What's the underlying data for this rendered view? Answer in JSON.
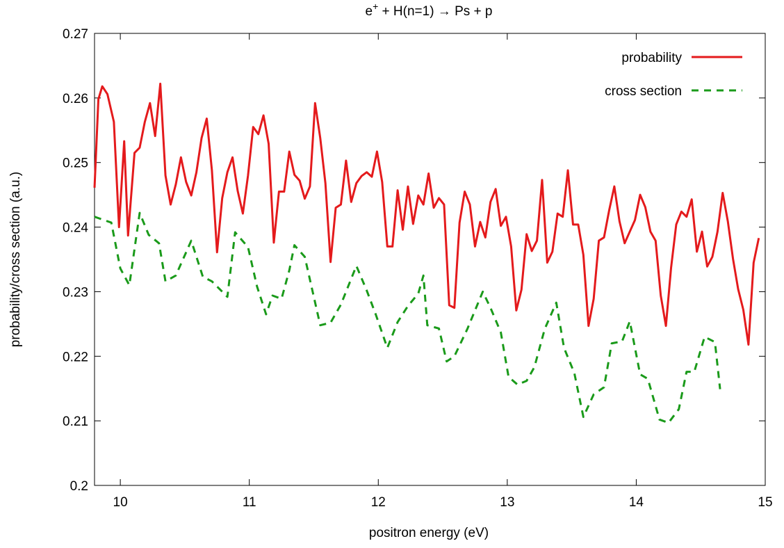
{
  "chart_data": {
    "type": "line",
    "title": [
      "e",
      "+",
      " + H(n=1) → Ps + p"
    ],
    "xlabel": "positron energy (eV)",
    "ylabel": "probability/cross section (a.u.)",
    "xlim": [
      9.8,
      15
    ],
    "xticks": [
      10,
      11,
      12,
      13,
      14,
      15
    ],
    "ylim": [
      0.2,
      0.27
    ],
    "yticks": [
      0.2,
      0.21,
      0.22,
      0.23,
      0.24,
      0.25,
      0.26,
      0.27
    ],
    "legend": "top-right",
    "series": [
      {
        "name": "probability",
        "color": "#e41a1c",
        "dash": false,
        "x": [
          9.8,
          9.83,
          9.86,
          9.9,
          9.95,
          9.99,
          10.03,
          10.06,
          10.11,
          10.15,
          10.19,
          10.23,
          10.27,
          10.31,
          10.35,
          10.39,
          10.43,
          10.47,
          10.51,
          10.55,
          10.59,
          10.63,
          10.67,
          10.71,
          10.75,
          10.79,
          10.83,
          10.87,
          10.91,
          10.95,
          10.99,
          11.03,
          11.07,
          11.11,
          11.15,
          11.19,
          11.23,
          11.27,
          11.31,
          11.35,
          11.39,
          11.43,
          11.47,
          11.51,
          11.55,
          11.59,
          11.63,
          11.67,
          11.71,
          11.75,
          11.79,
          11.83,
          11.87,
          11.91,
          11.95,
          11.99,
          12.03,
          12.07,
          12.11,
          12.15,
          12.19,
          12.23,
          12.27,
          12.31,
          12.35,
          12.39,
          12.43,
          12.47,
          12.51,
          12.55,
          12.59,
          12.63,
          12.67,
          12.71,
          12.75,
          12.79,
          12.83,
          12.87,
          12.91,
          12.95,
          12.99,
          13.03,
          13.07,
          13.11,
          13.15,
          13.19,
          13.23,
          13.27,
          13.31,
          13.35,
          13.39,
          13.43,
          13.47,
          13.51,
          13.55,
          13.59,
          13.63,
          13.67,
          13.71,
          13.75,
          13.79,
          13.83,
          13.87,
          13.91,
          13.95,
          13.99,
          14.03,
          14.07,
          14.11,
          14.15,
          14.19,
          14.23,
          14.27,
          14.31,
          14.35,
          14.39,
          14.43,
          14.47,
          14.51,
          14.55,
          14.59,
          14.63,
          14.67,
          14.71,
          14.75,
          14.79,
          14.83,
          14.87,
          14.91,
          14.95
        ],
        "values": [
          0.2461,
          0.2598,
          0.2618,
          0.2606,
          0.2563,
          0.24,
          0.2533,
          0.2387,
          0.2515,
          0.2523,
          0.2563,
          0.2592,
          0.2541,
          0.2622,
          0.248,
          0.2435,
          0.2466,
          0.2508,
          0.247,
          0.2449,
          0.2485,
          0.2538,
          0.2568,
          0.2488,
          0.2361,
          0.2445,
          0.2485,
          0.2508,
          0.2456,
          0.2421,
          0.248,
          0.2555,
          0.2544,
          0.2573,
          0.2529,
          0.2376,
          0.2455,
          0.2455,
          0.2517,
          0.2481,
          0.2472,
          0.2444,
          0.2463,
          0.2592,
          0.2538,
          0.2468,
          0.2346,
          0.243,
          0.2435,
          0.2503,
          0.2439,
          0.2468,
          0.2479,
          0.2485,
          0.2478,
          0.2517,
          0.247,
          0.237,
          0.237,
          0.2457,
          0.2396,
          0.2463,
          0.2405,
          0.2449,
          0.2435,
          0.2483,
          0.243,
          0.2445,
          0.2435,
          0.2279,
          0.2275,
          0.2407,
          0.2455,
          0.2435,
          0.237,
          0.2408,
          0.2384,
          0.2439,
          0.2459,
          0.2402,
          0.2416,
          0.237,
          0.2271,
          0.2303,
          0.2389,
          0.2363,
          0.2379,
          0.2473,
          0.2345,
          0.2362,
          0.2421,
          0.2416,
          0.2488,
          0.2404,
          0.2404,
          0.2357,
          0.2247,
          0.2289,
          0.2379,
          0.2384,
          0.2426,
          0.2463,
          0.2409,
          0.2375,
          0.2393,
          0.2411,
          0.245,
          0.2431,
          0.2393,
          0.2379,
          0.2294,
          0.2247,
          0.2337,
          0.2404,
          0.2424,
          0.2416,
          0.2443,
          0.2362,
          0.2393,
          0.2339,
          0.2354,
          0.2393,
          0.2453,
          0.2409,
          0.2351,
          0.2304,
          0.2272,
          0.2218,
          0.2345,
          0.2383
        ]
      },
      {
        "name": "cross section",
        "color": "#1a9a1a",
        "dash": true,
        "x": [
          9.8,
          9.93,
          10.0,
          10.07,
          10.15,
          10.22,
          10.3,
          10.35,
          10.43,
          10.55,
          10.64,
          10.71,
          10.83,
          10.89,
          10.99,
          11.06,
          11.13,
          11.18,
          11.25,
          11.31,
          11.35,
          11.43,
          11.55,
          11.63,
          11.71,
          11.83,
          11.91,
          11.98,
          12.07,
          12.15,
          12.23,
          12.31,
          12.35,
          12.38,
          12.47,
          12.53,
          12.59,
          12.69,
          12.81,
          12.87,
          12.95,
          13.01,
          13.08,
          13.15,
          13.21,
          13.29,
          13.38,
          13.44,
          13.52,
          13.59,
          13.67,
          13.75,
          13.81,
          13.89,
          13.95,
          14.03,
          14.09,
          14.18,
          14.25,
          14.33,
          14.39,
          14.45,
          14.53,
          14.61,
          14.65
        ],
        "values": [
          0.2416,
          0.2407,
          0.2336,
          0.231,
          0.2422,
          0.2388,
          0.2375,
          0.2316,
          0.2325,
          0.2379,
          0.2323,
          0.2316,
          0.2292,
          0.2392,
          0.2369,
          0.2308,
          0.2265,
          0.2294,
          0.2289,
          0.2333,
          0.2372,
          0.2354,
          0.2248,
          0.2252,
          0.228,
          0.234,
          0.2302,
          0.2265,
          0.2213,
          0.2253,
          0.2278,
          0.2297,
          0.2325,
          0.2248,
          0.2243,
          0.2192,
          0.22,
          0.2242,
          0.23,
          0.2275,
          0.2237,
          0.2168,
          0.2156,
          0.2162,
          0.2183,
          0.2242,
          0.2283,
          0.2213,
          0.2174,
          0.2106,
          0.2141,
          0.2152,
          0.222,
          0.2223,
          0.2254,
          0.2172,
          0.2165,
          0.2102,
          0.2097,
          0.2118,
          0.2176,
          0.2176,
          0.223,
          0.2222,
          0.2149
        ]
      }
    ]
  }
}
